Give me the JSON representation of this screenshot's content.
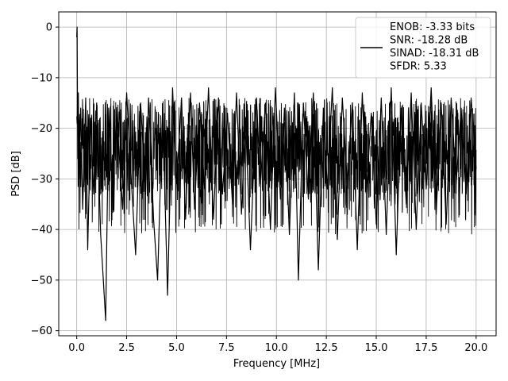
{
  "chart_data": {
    "type": "line",
    "xlabel": "Frequency [MHz]",
    "ylabel": "PSD [dB]",
    "xlim": [
      -0.9,
      21.0
    ],
    "ylim": [
      -61,
      3
    ],
    "xticks": [
      0.0,
      2.5,
      5.0,
      7.5,
      10.0,
      12.5,
      15.0,
      17.5,
      20.0
    ],
    "xtick_labels": [
      "0.0",
      "2.5",
      "5.0",
      "7.5",
      "10.0",
      "12.5",
      "15.0",
      "17.5",
      "20.0"
    ],
    "yticks": [
      0,
      -10,
      -20,
      -30,
      -40,
      -50,
      -60
    ],
    "ytick_labels": [
      "0",
      "−10",
      "−20",
      "−30",
      "−40",
      "−50",
      "−60"
    ],
    "grid": true,
    "legend_position": "top-right",
    "series": [
      {
        "name": "ENOB: -3.33 bits\nSNR: -18.28 dB\nSINAD: -18.31 dB\nSFDR: 5.33",
        "name_lines": [
          "ENOB: -3.33 bits",
          "SNR: -18.28 dB",
          "SINAD: -18.31 dB",
          "SFDR: 5.33"
        ],
        "color": "#000000",
        "x": [
          0,
          0.02,
          0.05,
          0.08,
          0.12,
          0.2,
          0.3,
          0.45,
          0.55,
          0.7,
          0.85,
          1.0,
          1.2,
          1.45,
          1.6,
          1.8,
          2.0,
          2.3,
          2.5,
          2.7,
          2.95,
          3.2,
          3.45,
          3.6,
          3.85,
          4.05,
          4.3,
          4.55,
          4.8,
          5.0,
          5.25,
          5.45,
          5.7,
          5.9,
          6.15,
          6.4,
          6.6,
          6.85,
          7.1,
          7.3,
          7.55,
          7.8,
          8.0,
          8.25,
          8.45,
          8.7,
          9.0,
          9.2,
          9.45,
          9.7,
          9.95,
          10.2,
          10.4,
          10.65,
          10.9,
          11.1,
          11.35,
          11.6,
          11.85,
          12.1,
          12.35,
          12.55,
          12.8,
          13.05,
          13.3,
          13.55,
          13.8,
          14.05,
          14.3,
          14.5,
          14.75,
          15.0,
          15.25,
          15.5,
          15.75,
          16.0,
          16.25,
          16.5,
          16.75,
          17.0,
          17.25,
          17.5,
          17.75,
          18.0,
          18.25,
          18.5,
          18.75,
          19.0,
          19.25,
          19.5,
          19.75,
          20.0
        ],
        "y": [
          -2,
          0,
          -26,
          -13,
          -30,
          -16,
          -36,
          -14,
          -44,
          -18,
          -33,
          -15,
          -41,
          -58,
          -16,
          -32,
          -17,
          -36,
          -13,
          -28,
          -45,
          -15,
          -33,
          -14,
          -38,
          -50,
          -16,
          -53,
          -12,
          -31,
          -14,
          -38,
          -13,
          -36,
          -15,
          -32,
          -12,
          -38,
          -14,
          -33,
          -17,
          -35,
          -13,
          -37,
          -18,
          -44,
          -14,
          -31,
          -15,
          -40,
          -12,
          -34,
          -16,
          -41,
          -13,
          -50,
          -15,
          -34,
          -13,
          -48,
          -16,
          -32,
          -12,
          -42,
          -14,
          -31,
          -15,
          -44,
          -13,
          -33,
          -17,
          -39,
          -14,
          -41,
          -12,
          -45,
          -16,
          -35,
          -13,
          -40,
          -15,
          -32,
          -12,
          -37,
          -15,
          -39,
          -14,
          -31,
          -16,
          -33,
          -14,
          -28
        ]
      }
    ]
  }
}
